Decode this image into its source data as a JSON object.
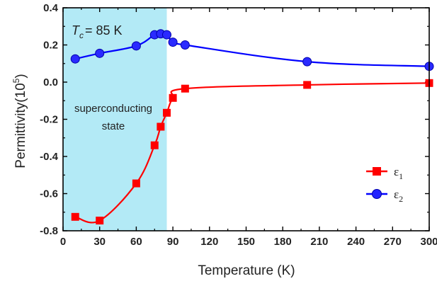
{
  "chart_data": {
    "type": "line",
    "xlabel": "Temperature (K)",
    "ylabel_main": "Permittivity(10",
    "ylabel_sup": "5",
    "ylabel_end": ")",
    "xlim": [
      0,
      300
    ],
    "ylim": [
      -0.8,
      0.4
    ],
    "x_ticks": [
      0,
      30,
      60,
      90,
      120,
      150,
      180,
      210,
      240,
      270,
      300
    ],
    "y_ticks": [
      -0.8,
      -0.6,
      -0.4,
      -0.2,
      0.0,
      0.2,
      0.4
    ],
    "y_tick_labels": [
      "-0.8",
      "-0.6",
      "-0.4",
      "-0.2",
      "0.0",
      "0.2",
      "0.4"
    ],
    "legend_position": "right",
    "shaded_region": {
      "x_range": [
        0,
        85
      ],
      "color": "#b3eaf6",
      "label_line1": "superconducting",
      "label_line2": "state"
    },
    "annotation": {
      "symbol": "T",
      "subscript": "c",
      "text": "= 85 K"
    },
    "series": [
      {
        "name": "ε",
        "subscript": "1",
        "color": "#ff0000",
        "marker": "square",
        "x": [
          10,
          30,
          60,
          75,
          80,
          85,
          90,
          100,
          200,
          300
        ],
        "y": [
          -0.725,
          -0.745,
          -0.545,
          -0.34,
          -0.24,
          -0.165,
          -0.085,
          -0.035,
          -0.015,
          -0.005
        ]
      },
      {
        "name": "ε",
        "subscript": "2",
        "color": "#0000ff",
        "marker": "circle",
        "x": [
          10,
          30,
          60,
          75,
          80,
          85,
          90,
          100,
          200,
          300
        ],
        "y": [
          0.125,
          0.155,
          0.195,
          0.255,
          0.26,
          0.255,
          0.215,
          0.2,
          0.11,
          0.085
        ]
      }
    ]
  }
}
